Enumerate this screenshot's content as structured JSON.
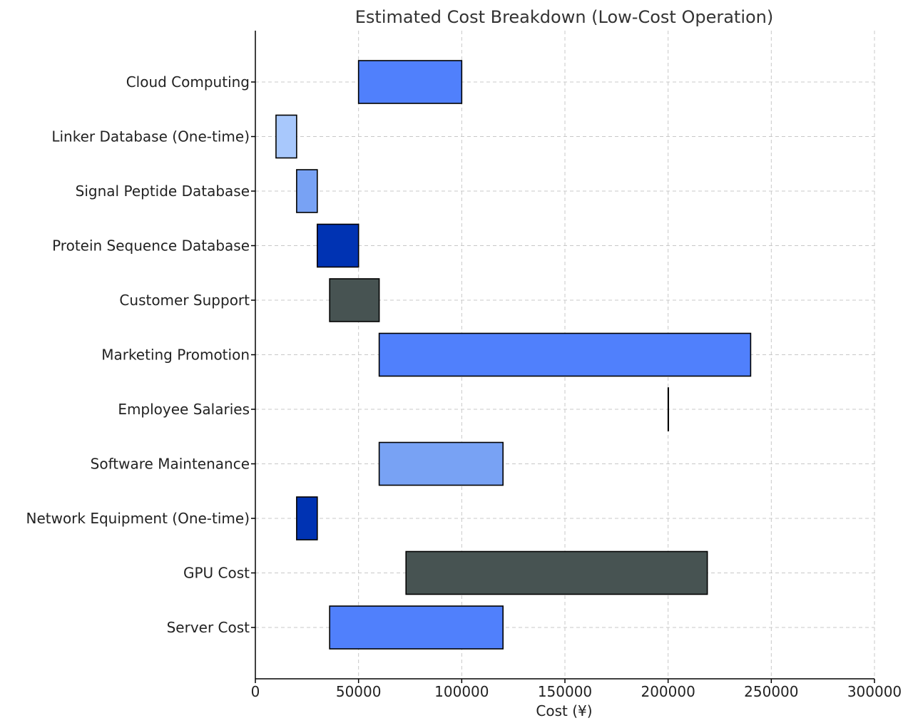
{
  "chart_data": {
    "type": "bar",
    "orientation": "horizontal-range",
    "title": "Estimated Cost Breakdown (Low-Cost Operation)",
    "xlabel": "Cost (¥)",
    "ylabel": "",
    "xlim": [
      0,
      300000
    ],
    "xticks": [
      0,
      50000,
      100000,
      150000,
      200000,
      250000,
      300000
    ],
    "xtick_labels": [
      "0",
      "50000",
      "100000",
      "150000",
      "200000",
      "250000",
      "300000"
    ],
    "grid": true,
    "categories": [
      "Server Cost",
      "GPU Cost",
      "Network Equipment (One-time)",
      "Software Maintenance",
      "Employee Salaries",
      "Marketing Promotion",
      "Customer Support",
      "Protein Sequence Database",
      "Signal Peptide Database",
      "Linker Database (One-time)",
      "Cloud Computing"
    ],
    "start": [
      36000,
      73000,
      20000,
      60000,
      200000,
      60000,
      36000,
      30000,
      20000,
      10000,
      50000
    ],
    "end": [
      120000,
      219000,
      30000,
      120000,
      200000,
      240000,
      60000,
      50000,
      30000,
      20000,
      100000
    ],
    "colors": [
      "#5080fc",
      "#475352",
      "#0033b3",
      "#78a2f4",
      "#475352",
      "#5080fc",
      "#475352",
      "#0033b3",
      "#78a2f4",
      "#a8c8fc",
      "#5080fc"
    ]
  }
}
